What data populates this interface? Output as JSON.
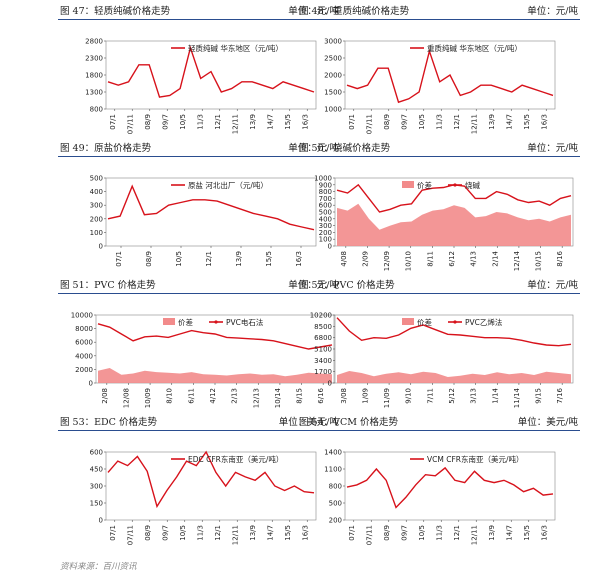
{
  "source_note": "资料来源：百川资讯",
  "charts": [
    {
      "title": "图 47：轻质纯碱价格走势",
      "unit": "单位：元/吨",
      "legend": [
        "轻质纯碱 华东地区（元/吨）"
      ],
      "yticks": [
        "2800",
        "2300",
        "1800",
        "1300",
        "800"
      ],
      "xticks": [
        "07/1",
        "07/11",
        "08/9",
        "09/7",
        "10/5",
        "11/3",
        "12/1",
        "12/11",
        "13/9",
        "14/7",
        "15/5",
        "16/3"
      ]
    },
    {
      "title": "图 48：重质纯碱价格走势",
      "unit": "单位：元/吨",
      "legend": [
        "重质纯碱 华东地区（元/吨）"
      ],
      "yticks": [
        "3000",
        "2500",
        "2000",
        "1500",
        "1000"
      ],
      "xticks": [
        "07/1",
        "07/11",
        "08/9",
        "09/7",
        "10/5",
        "11/3",
        "12/1",
        "12/11",
        "13/9",
        "14/7",
        "15/5",
        "16/3"
      ]
    },
    {
      "title": "图 49：原盐价格走势",
      "unit": "单位：元/吨",
      "legend": [
        "原盐 河北出厂（元/吨）"
      ],
      "yticks": [
        "500",
        "400",
        "300",
        "200",
        "100",
        "0"
      ],
      "xticks": [
        "07/1",
        "08/9",
        "10/5",
        "12/1",
        "13/9",
        "15/5",
        "16/3"
      ]
    },
    {
      "title": "图 50：烧碱价格走势",
      "unit": "单位：元/吨",
      "legend": [
        "价差",
        "烧碱"
      ],
      "yticks": [
        "1000",
        "900",
        "800",
        "700",
        "600",
        "500",
        "400",
        "300",
        "200",
        "100",
        "0"
      ],
      "xticks": [
        "4/08",
        "2/09",
        "12/09",
        "10/10",
        "8/11",
        "6/12",
        "4/13",
        "2/14",
        "12/14",
        "10/15",
        "8/16"
      ]
    },
    {
      "title": "图 51：PVC 价格走势",
      "unit": "单位：元/吨",
      "legend": [
        "价差",
        "PVC电石法"
      ],
      "yticks": [
        "10000",
        "8000",
        "6000",
        "4000",
        "2000",
        "0"
      ],
      "xticks": [
        "2/08",
        "12/08",
        "10/09",
        "8/10",
        "6/11",
        "4/12",
        "2/13",
        "12/13",
        "10/14",
        "8/15",
        "6/16"
      ]
    },
    {
      "title": "图 52：PVC 价格走势",
      "unit": "单位：元/吨",
      "legend": [
        "价差",
        "PVC乙烯法"
      ],
      "yticks": [
        "10200",
        "8500",
        "6800",
        "5100",
        "3400",
        "1700",
        "0"
      ],
      "xticks": [
        "3/08",
        "1/09",
        "11/09",
        "9/10",
        "7/11",
        "5/12",
        "3/13",
        "1/14",
        "11/14",
        "9/15",
        "7/16"
      ]
    },
    {
      "title": "图 53：EDC 价格走势",
      "unit": "单位：美元/吨",
      "legend": [
        "EDC CFR东南亚（美元/吨）"
      ],
      "yticks": [
        "600",
        "450",
        "300",
        "150",
        "0"
      ],
      "xticks": [
        "07/1",
        "07/11",
        "08/9",
        "09/7",
        "10/5",
        "11/3",
        "12/1",
        "12/11",
        "13/9",
        "14/7",
        "15/5",
        "16/3"
      ]
    },
    {
      "title": "图 54：VCM 价格走势",
      "unit": "单位：美元/吨",
      "legend": [
        "VCM CFR东南亚（美元/吨）"
      ],
      "yticks": [
        "1400",
        "1100",
        "800",
        "500",
        "200"
      ],
      "xticks": [
        "07/1",
        "07/11",
        "08/9",
        "09/7",
        "10/5",
        "11/3",
        "12/1",
        "12/11",
        "13/9",
        "14/7",
        "15/5",
        "16/3"
      ]
    }
  ],
  "chart_data": [
    {
      "type": "line",
      "title": "图 47：轻质纯碱价格走势",
      "unit": "元/吨",
      "series": [
        {
          "name": "轻质纯碱 华东地区（元/吨）",
          "values": [
            1600,
            1500,
            1600,
            2100,
            2100,
            1150,
            1200,
            1400,
            2600,
            1700,
            1900,
            1300,
            1400,
            1600,
            1600,
            1500,
            1400,
            1600,
            1500,
            1400,
            1300
          ]
        }
      ],
      "ylim": [
        800,
        2800
      ]
    },
    {
      "type": "line",
      "title": "图 48：重质纯碱价格走势",
      "unit": "元/吨",
      "series": [
        {
          "name": "重质纯碱 华东地区（元/吨）",
          "values": [
            1700,
            1600,
            1700,
            2200,
            2200,
            1200,
            1300,
            1500,
            2700,
            1800,
            2000,
            1400,
            1500,
            1700,
            1700,
            1600,
            1500,
            1700,
            1600,
            1500,
            1400
          ]
        }
      ],
      "ylim": [
        1000,
        3000
      ]
    },
    {
      "type": "line",
      "title": "图 49：原盐价格走势",
      "unit": "元/吨",
      "series": [
        {
          "name": "原盐 河北出厂（元/吨）",
          "values": [
            200,
            220,
            440,
            230,
            240,
            300,
            320,
            340,
            340,
            330,
            300,
            270,
            240,
            220,
            200,
            160,
            140,
            120
          ]
        }
      ],
      "ylim": [
        0,
        500
      ]
    },
    {
      "type": "area",
      "title": "图 50：烧碱价格走势",
      "unit": "元/吨",
      "series": [
        {
          "name": "烧碱",
          "values": [
            820,
            780,
            900,
            700,
            500,
            540,
            600,
            620,
            820,
            850,
            860,
            900,
            880,
            700,
            700,
            800,
            760,
            680,
            640,
            660,
            600,
            700,
            740
          ]
        },
        {
          "name": "价差",
          "values": [
            560,
            520,
            620,
            400,
            240,
            300,
            350,
            360,
            460,
            520,
            540,
            600,
            560,
            420,
            440,
            500,
            480,
            420,
            380,
            400,
            360,
            420,
            460
          ]
        }
      ],
      "ylim": [
        0,
        1000
      ]
    },
    {
      "type": "area",
      "title": "图 51：PVC 价格走势",
      "unit": "元/吨",
      "series": [
        {
          "name": "PVC电石法",
          "values": [
            8700,
            8200,
            7200,
            6200,
            6800,
            6900,
            6700,
            7200,
            7700,
            7400,
            7200,
            6700,
            6600,
            6500,
            6400,
            6200,
            5800,
            5400,
            5000,
            5300,
            5600
          ]
        },
        {
          "name": "价差",
          "values": [
            1800,
            2200,
            1200,
            1400,
            1800,
            1600,
            1500,
            1400,
            1600,
            1300,
            1200,
            1100,
            1300,
            1400,
            1200,
            1300,
            1000,
            1200,
            1500,
            1400,
            1300
          ]
        }
      ],
      "ylim": [
        0,
        10000
      ]
    },
    {
      "type": "area",
      "title": "图 52：PVC 价格走势",
      "unit": "元/吨",
      "series": [
        {
          "name": "PVC乙烯法",
          "values": [
            9800,
            7800,
            6400,
            6800,
            6700,
            7200,
            8200,
            8700,
            8000,
            7300,
            7200,
            7000,
            6800,
            6800,
            6700,
            6400,
            6000,
            5700,
            5600,
            5800
          ]
        },
        {
          "name": "价差",
          "values": [
            1200,
            1800,
            1500,
            1000,
            1400,
            1600,
            1300,
            1700,
            1500,
            900,
            1100,
            1400,
            1200,
            1600,
            1300,
            1500,
            1200,
            1700,
            1500,
            1300
          ]
        }
      ],
      "ylim": [
        0,
        10200
      ]
    },
    {
      "type": "line",
      "title": "图 53：EDC 价格走势",
      "unit": "美元/吨",
      "series": [
        {
          "name": "EDC CFR东南亚（美元/吨）",
          "values": [
            420,
            520,
            480,
            560,
            430,
            120,
            260,
            380,
            520,
            480,
            600,
            420,
            300,
            420,
            380,
            350,
            420,
            300,
            260,
            300,
            250,
            240
          ]
        }
      ],
      "ylim": [
        0,
        600
      ]
    },
    {
      "type": "line",
      "title": "图 54：VCM 价格走势",
      "unit": "美元/吨",
      "series": [
        {
          "name": "VCM CFR东南亚（美元/吨）",
          "values": [
            780,
            820,
            900,
            1100,
            900,
            420,
            600,
            820,
            1000,
            980,
            1120,
            900,
            860,
            1060,
            900,
            860,
            900,
            820,
            700,
            760,
            640,
            660
          ]
        }
      ],
      "ylim": [
        200,
        1400
      ]
    }
  ]
}
